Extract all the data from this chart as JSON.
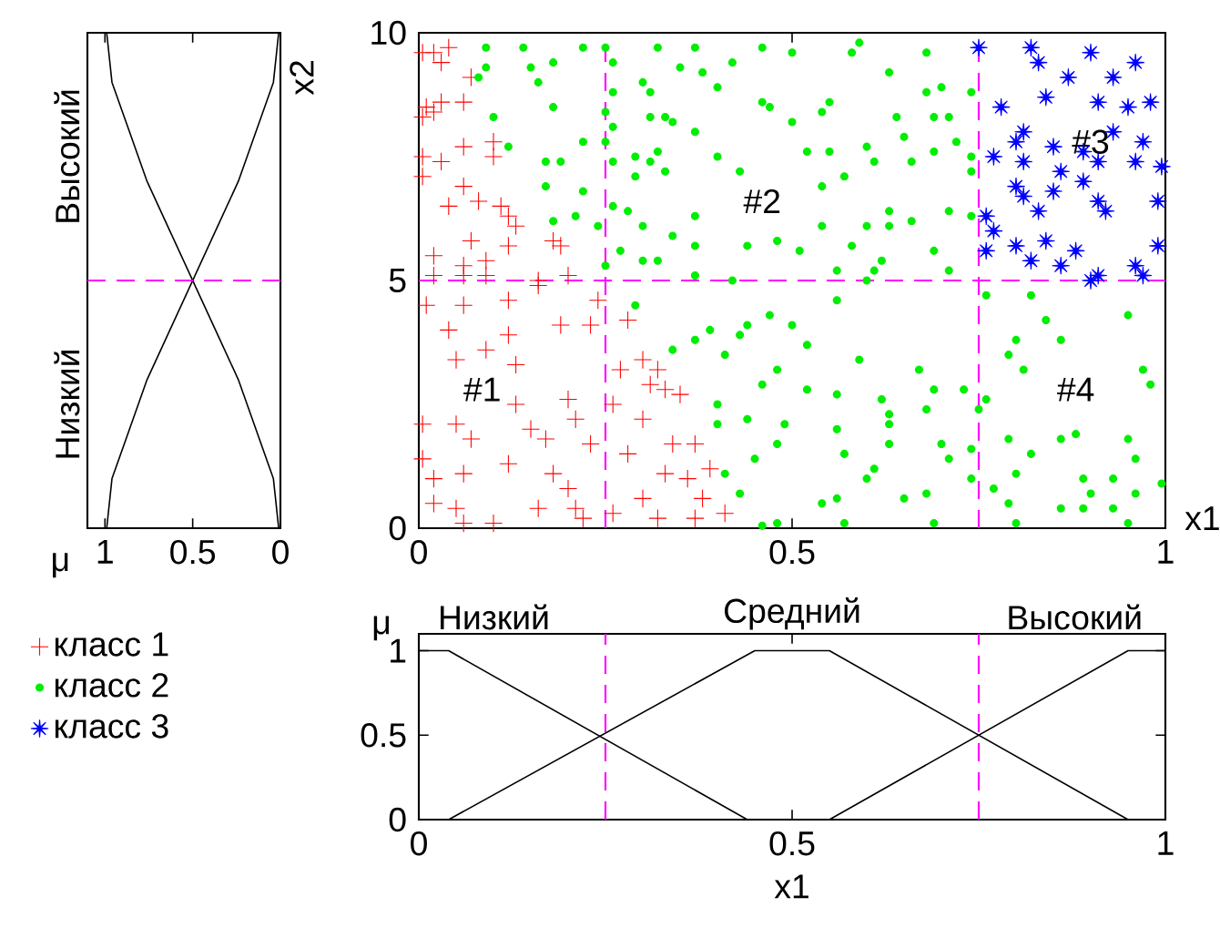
{
  "chart_data": [
    {
      "type": "line",
      "orientation": "horizontal",
      "xlabel": "μ",
      "ylabel": "x2",
      "xlim": [
        1.1,
        0
      ],
      "xticks": [
        1,
        0.5,
        0
      ],
      "ylim": [
        0,
        10
      ],
      "tick_labels": "x",
      "ref_lines": [
        {
          "axis": "y",
          "value": 5,
          "color": "#ff00ff",
          "line_style": "dashed"
        }
      ],
      "series": [
        {
          "name": "Высокий",
          "color": "#000000",
          "x": [
            0,
            1,
            2,
            3,
            4,
            5,
            6,
            7,
            8,
            9,
            10
          ],
          "values": [
            0.01,
            0.04,
            0.14,
            0.24,
            0.37,
            0.5,
            0.63,
            0.76,
            0.86,
            0.96,
            0.99
          ]
        },
        {
          "name": "Низкий",
          "color": "#000000",
          "x": [
            0,
            1,
            2,
            3,
            4,
            5,
            6,
            7,
            8,
            9,
            10
          ],
          "values": [
            0.99,
            0.96,
            0.86,
            0.76,
            0.63,
            0.5,
            0.37,
            0.24,
            0.14,
            0.04,
            0.01
          ]
        }
      ]
    },
    {
      "type": "scatter",
      "xlabel": "x1",
      "xlim": [
        0,
        1
      ],
      "ylim": [
        0,
        10
      ],
      "xticks": [
        0,
        0.5,
        1
      ],
      "yticks": [
        0,
        5,
        10
      ],
      "legend": "bottom left",
      "ref_lines": [
        {
          "axis": "x",
          "value": 0.25,
          "color": "#ff00ff",
          "line_style": "dashed"
        },
        {
          "axis": "x",
          "value": 0.75,
          "color": "#ff00ff",
          "line_style": "dashed"
        },
        {
          "axis": "y",
          "value": 5,
          "color": "#ff00ff",
          "line_style": "dashed"
        }
      ],
      "annotations": [
        "#1",
        "#2",
        "#3",
        "#4"
      ],
      "series": [
        {
          "name": "класс 1",
          "color": "#ff0000",
          "marker": "cross",
          "x": [
            0.02,
            0.04,
            0.005,
            0.03,
            0.07,
            0.01,
            0.03,
            0.06,
            0.005,
            0.02,
            0.005,
            0.03,
            0.06,
            0.1,
            0.1,
            0.005,
            0.06,
            0.04,
            0.08,
            0.11,
            0.12,
            0.13,
            0.07,
            0.12,
            0.18,
            0.19,
            0.02,
            0.06,
            0.09,
            0.02,
            0.06,
            0.09,
            0.16,
            0.2,
            0.01,
            0.06,
            0.12,
            0.16,
            0.24,
            0.19,
            0.23,
            0.28,
            0.04,
            0.12,
            0.05,
            0.09,
            0.13,
            0.27,
            0.3,
            0.32,
            0.13,
            0.2,
            0.21,
            0.26,
            0.3,
            0.31,
            0.33,
            0.35,
            0.005,
            0.05,
            0.07,
            0.15,
            0.17,
            0.23,
            0.34,
            0.37,
            0.28,
            0.005,
            0.02,
            0.06,
            0.12,
            0.18,
            0.2,
            0.33,
            0.36,
            0.39,
            0.02,
            0.05,
            0.1,
            0.16,
            0.21,
            0.22,
            0.26,
            0.3,
            0.32,
            0.37,
            0.38,
            0.41,
            0.06
          ],
          "values": [
            9.6,
            9.7,
            9.6,
            9.4,
            9.1,
            8.5,
            8.6,
            8.6,
            8.3,
            8.4,
            7.5,
            7.4,
            7.7,
            7.8,
            7.5,
            7.1,
            6.9,
            6.5,
            6.6,
            6.5,
            6.3,
            6.1,
            5.8,
            5.7,
            5.8,
            5.7,
            5.5,
            5.3,
            5.4,
            5.1,
            5.1,
            5.1,
            5.0,
            5.1,
            4.5,
            4.5,
            4.6,
            4.9,
            4.6,
            4.1,
            4.1,
            4.2,
            4.0,
            3.9,
            3.4,
            3.6,
            3.3,
            3.2,
            3.4,
            3.2,
            2.5,
            2.6,
            2.2,
            2.5,
            2.2,
            2.9,
            2.8,
            2.7,
            2.1,
            2.1,
            1.8,
            2.0,
            1.8,
            1.7,
            1.7,
            1.7,
            1.5,
            1.4,
            1.0,
            1.1,
            1.3,
            1.1,
            0.8,
            1.1,
            1.0,
            1.2,
            0.5,
            0.4,
            0.1,
            0.4,
            0.4,
            0.2,
            0.3,
            0.6,
            0.2,
            0.2,
            0.6,
            0.3,
            0.1
          ]
        },
        {
          "name": "класс 2",
          "color": "#00ee00",
          "marker": "circle",
          "x": [
            0.09,
            0.14,
            0.22,
            0.25,
            0.32,
            0.37,
            0.46,
            0.09,
            0.15,
            0.18,
            0.26,
            0.35,
            0.38,
            0.42,
            0.08,
            0.16,
            0.3,
            0.26,
            0.31,
            0.4,
            0.46,
            0.18,
            0.1,
            0.25,
            0.31,
            0.33,
            0.47,
            0.26,
            0.34,
            0.37,
            0.12,
            0.22,
            0.25,
            0.32,
            0.29,
            0.4,
            0.17,
            0.19,
            0.26,
            0.31,
            0.43,
            0.29,
            0.33,
            0.17,
            0.22,
            0.26,
            0.18,
            0.21,
            0.28,
            0.3,
            0.34,
            0.37,
            0.24,
            0.27,
            0.3,
            0.32,
            0.37,
            0.44,
            0.25,
            0.37,
            0.42,
            0.5,
            0.59,
            0.58,
            0.68,
            0.63,
            0.55,
            0.68,
            0.7,
            0.74,
            0.54,
            0.64,
            0.69,
            0.5,
            0.71,
            0.65,
            0.72,
            0.52,
            0.55,
            0.6,
            0.69,
            0.74,
            0.61,
            0.66,
            0.57,
            0.54,
            0.74,
            0.63,
            0.66,
            0.71,
            0.74,
            0.48,
            0.54,
            0.6,
            0.63,
            0.69,
            0.51,
            0.58,
            0.62,
            0.56,
            0.61,
            0.71,
            0.29,
            0.34,
            0.37,
            0.39,
            0.41,
            0.44,
            0.47,
            0.43,
            0.46,
            0.4,
            0.4,
            0.44,
            0.48,
            0.45,
            0.41,
            0.43,
            0.46,
            0.48,
            0.5,
            0.56,
            0.6,
            0.52,
            0.59,
            0.67,
            0.52,
            0.56,
            0.62,
            0.69,
            0.73,
            0.63,
            0.68,
            0.75,
            0.49,
            0.56,
            0.63,
            0.57,
            0.63,
            0.7,
            0.74,
            0.61,
            0.71,
            0.6,
            0.68,
            0.56,
            0.65,
            0.54,
            0.74,
            0.57,
            0.69,
            0.48,
            0.76,
            0.82,
            0.95,
            0.84,
            0.86,
            0.8,
            0.79,
            0.81,
            0.97,
            0.98,
            0.76,
            0.88,
            0.95,
            0.79,
            0.86,
            0.82,
            0.96,
            0.8,
            0.89,
            0.93,
            0.995,
            0.77,
            0.9,
            0.96,
            0.79,
            0.86,
            0.89,
            0.93,
            0.95,
            0.8
          ],
          "values": [
            9.7,
            9.7,
            9.7,
            9.7,
            9.7,
            9.7,
            9.7,
            9.3,
            9.3,
            9.4,
            9.4,
            9.3,
            9.2,
            9.4,
            9.1,
            9.0,
            9.0,
            8.8,
            8.8,
            8.9,
            8.6,
            8.5,
            8.3,
            8.4,
            8.3,
            8.3,
            8.5,
            8.1,
            8.2,
            8.0,
            7.7,
            7.8,
            7.8,
            7.6,
            7.5,
            7.5,
            7.4,
            7.4,
            7.4,
            7.4,
            7.2,
            7.1,
            7.2,
            6.9,
            6.8,
            6.5,
            6.2,
            6.3,
            6.4,
            6.1,
            5.9,
            6.3,
            6.1,
            5.6,
            5.4,
            5.4,
            5.7,
            5.7,
            5.3,
            5.1,
            5.0,
            9.6,
            9.8,
            9.6,
            9.6,
            9.2,
            8.6,
            8.8,
            8.9,
            8.8,
            8.4,
            8.3,
            8.3,
            8.2,
            8.3,
            7.9,
            7.8,
            7.6,
            7.6,
            7.7,
            7.6,
            7.5,
            7.4,
            7.4,
            7.1,
            6.9,
            7.2,
            6.4,
            6.2,
            6.4,
            6.3,
            5.8,
            6.1,
            6.1,
            6.1,
            5.6,
            5.6,
            5.7,
            5.4,
            5.2,
            5.2,
            5.2,
            4.5,
            3.6,
            3.8,
            4.0,
            3.5,
            4.1,
            4.3,
            3.9,
            2.9,
            2.5,
            2.1,
            2.2,
            1.7,
            1.4,
            1.1,
            0.7,
            0.05,
            3.2,
            4.1,
            4.6,
            5.0,
            3.7,
            3.4,
            3.2,
            2.8,
            2.7,
            2.6,
            2.8,
            2.8,
            2.3,
            2.4,
            2.4,
            2.1,
            2.0,
            2.1,
            1.5,
            1.7,
            1.7,
            1.6,
            1.2,
            1.4,
            1.0,
            0.7,
            0.6,
            0.6,
            0.5,
            1.0,
            0.1,
            0.1,
            0.1,
            4.7,
            4.7,
            4.3,
            4.2,
            3.8,
            3.8,
            3.5,
            3.2,
            3.2,
            2.9,
            2.6,
            1.9,
            1.8,
            1.8,
            1.8,
            1.5,
            1.4,
            1.1,
            1.0,
            1.0,
            0.9,
            0.8,
            0.7,
            0.7,
            0.5,
            0.4,
            0.4,
            0.4,
            0.1,
            0.1
          ]
        },
        {
          "name": "класс 3",
          "color": "#0000ff",
          "marker": "star",
          "x": [
            0.75,
            0.82,
            0.83,
            0.9,
            0.96,
            0.87,
            0.93,
            0.78,
            0.84,
            0.91,
            0.95,
            0.98,
            0.81,
            0.8,
            0.85,
            0.89,
            0.93,
            0.97,
            0.77,
            0.81,
            0.86,
            0.91,
            0.96,
            0.995,
            0.8,
            0.81,
            0.85,
            0.89,
            0.91,
            0.99,
            0.76,
            0.83,
            0.77,
            0.92,
            0.8,
            0.84,
            0.88,
            0.99,
            0.82,
            0.86,
            0.91,
            0.96,
            0.76,
            0.9,
            0.97
          ],
          "values": [
            9.7,
            9.7,
            9.4,
            9.6,
            9.4,
            9.1,
            9.1,
            8.5,
            8.7,
            8.6,
            8.5,
            8.6,
            8.0,
            7.8,
            7.7,
            7.6,
            8.0,
            7.8,
            7.5,
            7.4,
            7.2,
            7.4,
            7.4,
            7.3,
            6.9,
            6.7,
            6.8,
            7.0,
            6.6,
            6.6,
            6.3,
            6.4,
            6.0,
            6.4,
            5.7,
            5.8,
            5.6,
            5.7,
            5.4,
            5.3,
            5.1,
            5.3,
            5.6,
            5.0,
            5.1
          ]
        }
      ]
    },
    {
      "type": "line",
      "xlabel": "x1",
      "ylabel": "μ",
      "xlim": [
        0,
        1
      ],
      "ylim": [
        0,
        1.1
      ],
      "xticks": [
        0,
        0.5,
        1
      ],
      "yticks": [
        0,
        0.5,
        1
      ],
      "ref_lines": [
        {
          "axis": "x",
          "value": 0.25,
          "color": "#ff00ff",
          "line_style": "dashed"
        },
        {
          "axis": "x",
          "value": 0.75,
          "color": "#ff00ff",
          "line_style": "dashed"
        }
      ],
      "series": [
        {
          "name": "Низкий",
          "color": "#000000",
          "x": [
            0,
            0.04,
            0.44,
            1
          ],
          "values": [
            1,
            1,
            0,
            0
          ]
        },
        {
          "name": "Средний",
          "color": "#000000",
          "x": [
            0,
            0.04,
            0.45,
            0.55,
            0.95,
            1
          ],
          "values": [
            0,
            0,
            1,
            1,
            0,
            0
          ]
        },
        {
          "name": "Высокий",
          "color": "#000000",
          "x": [
            0,
            0.55,
            0.95,
            1
          ],
          "values": [
            0,
            0,
            1,
            1
          ]
        }
      ]
    }
  ]
}
